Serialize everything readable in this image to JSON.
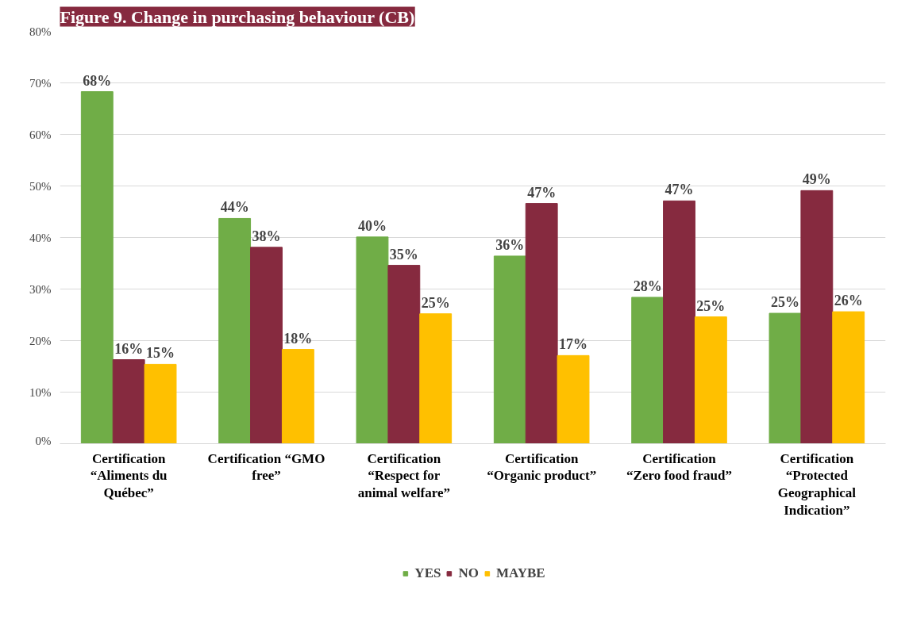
{
  "chart_data": {
    "type": "bar",
    "title": "Figure 9. Change in purchasing behaviour (CB)",
    "categories": [
      "Certification “Aliments du Québec”",
      "Certification “GMO free”",
      "Certification “Respect for animal welfare”",
      "Certification “Organic product”",
      "Certification “Zero food fraud”",
      "Certification “Protected Geographical Indication”"
    ],
    "series": [
      {
        "name": "YES",
        "color": "#70ad47",
        "values": [
          68.3,
          43.7,
          40.1,
          36.4,
          28.4,
          25.3
        ],
        "value_labels": [
          "68%",
          "44%",
          "40%",
          "36%",
          "28%",
          "25%"
        ]
      },
      {
        "name": "NO",
        "color": "#862a3f",
        "values": [
          16.3,
          38.1,
          34.6,
          46.6,
          47.1,
          49.1
        ],
        "value_labels": [
          "16%",
          "38%",
          "35%",
          "47%",
          "47%",
          "49%"
        ]
      },
      {
        "name": "MAYBE",
        "color": "#ffc000",
        "values": [
          15.4,
          18.3,
          25.2,
          17.1,
          24.6,
          25.6
        ],
        "value_labels": [
          "15%",
          "18%",
          "25%",
          "17%",
          "25%",
          "26%"
        ]
      }
    ],
    "ylim": [
      0,
      80
    ],
    "yticks": [
      {
        "value": 0,
        "label": "0%"
      },
      {
        "value": 10,
        "label": "10%"
      },
      {
        "value": 20,
        "label": "20%"
      },
      {
        "value": 30,
        "label": "30%"
      },
      {
        "value": 40,
        "label": "40%"
      },
      {
        "value": 50,
        "label": "50%"
      },
      {
        "value": 60,
        "label": "60%"
      },
      {
        "value": 70,
        "label": "70%"
      },
      {
        "value": 80,
        "label": "80%"
      }
    ],
    "grid": "y",
    "legend": "bottom"
  }
}
